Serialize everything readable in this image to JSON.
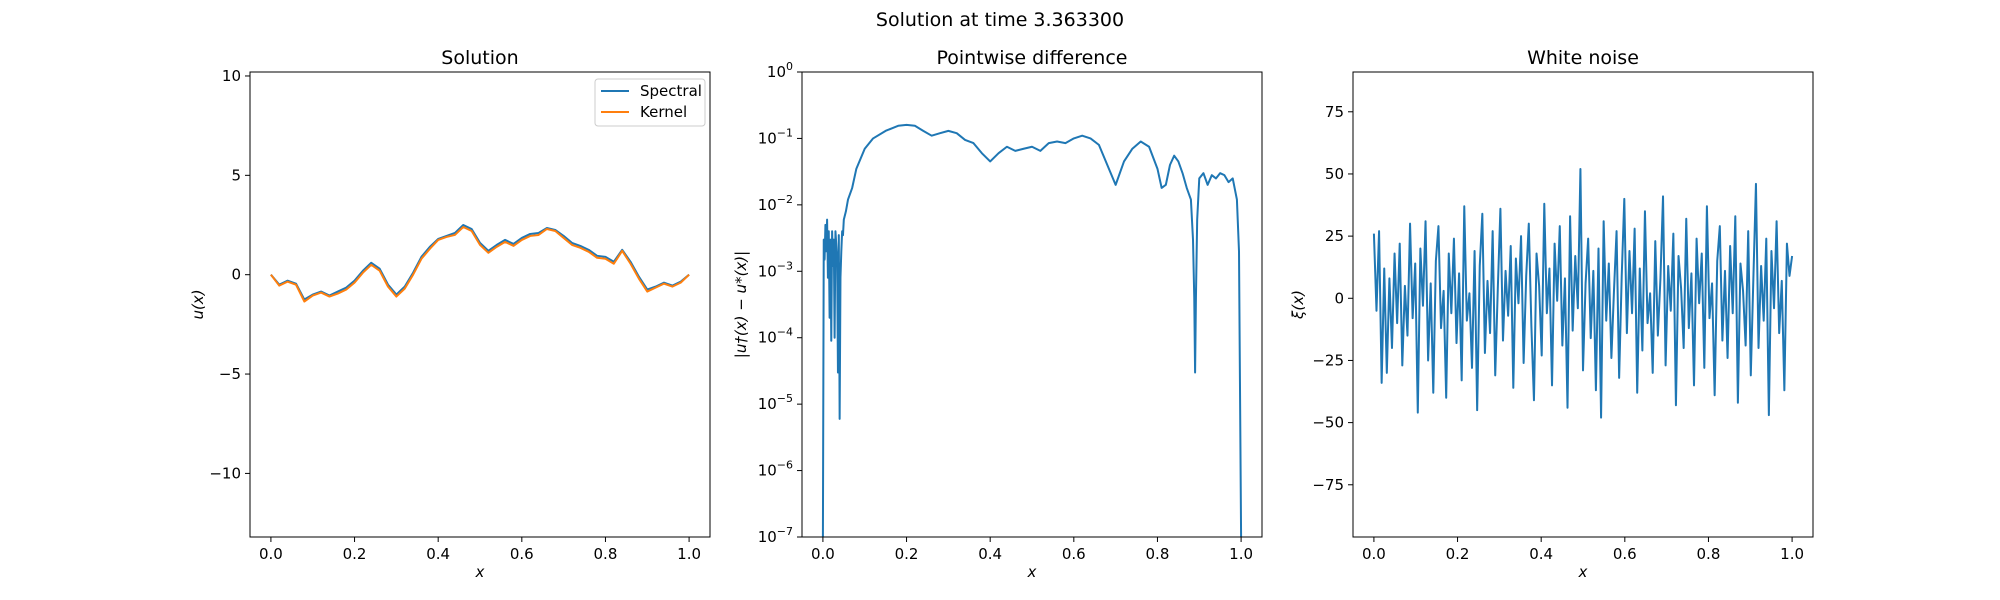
{
  "figure": {
    "suptitle": "Solution at time 3.363300"
  },
  "colors": {
    "series_1": "#1f77b4",
    "series_2": "#ff7f0e",
    "axes": "#000000",
    "background": "#ffffff"
  },
  "chart_data": [
    {
      "type": "line",
      "title": "Solution",
      "xlabel": "x",
      "ylabel": "u(x)",
      "xlim": [
        -0.05,
        1.05
      ],
      "ylim": [
        -13.2,
        10.2
      ],
      "xticks": [
        0.0,
        0.2,
        0.4,
        0.6,
        0.8,
        1.0
      ],
      "xtick_labels": [
        "0.0",
        "0.2",
        "0.4",
        "0.6",
        "0.8",
        "1.0"
      ],
      "yticks": [
        -10,
        -5,
        0,
        5,
        10
      ],
      "ytick_labels": [
        "−10",
        "−5",
        "0",
        "5",
        "10"
      ],
      "grid": false,
      "legend": "top-right",
      "x": [
        0.0,
        0.02,
        0.04,
        0.06,
        0.08,
        0.1,
        0.12,
        0.14,
        0.16,
        0.18,
        0.2,
        0.22,
        0.24,
        0.26,
        0.28,
        0.3,
        0.32,
        0.34,
        0.36,
        0.38,
        0.4,
        0.42,
        0.44,
        0.46,
        0.48,
        0.5,
        0.52,
        0.54,
        0.56,
        0.58,
        0.6,
        0.62,
        0.64,
        0.66,
        0.68,
        0.7,
        0.72,
        0.74,
        0.76,
        0.78,
        0.8,
        0.82,
        0.84,
        0.86,
        0.88,
        0.9,
        0.92,
        0.94,
        0.96,
        0.98,
        1.0
      ],
      "series": [
        {
          "name": "Spectral",
          "values": [
            0.0,
            -0.5,
            -0.3,
            -0.45,
            -1.25,
            -1.0,
            -0.85,
            -1.05,
            -0.85,
            -0.65,
            -0.3,
            0.2,
            0.6,
            0.3,
            -0.5,
            -1.0,
            -0.6,
            0.1,
            0.9,
            1.4,
            1.8,
            1.95,
            2.1,
            2.5,
            2.3,
            1.6,
            1.2,
            1.5,
            1.75,
            1.55,
            1.85,
            2.05,
            2.1,
            2.35,
            2.25,
            1.95,
            1.6,
            1.45,
            1.25,
            0.95,
            0.9,
            0.65,
            1.25,
            0.65,
            -0.1,
            -0.75,
            -0.6,
            -0.4,
            -0.55,
            -0.35,
            0.0
          ]
        },
        {
          "name": "Kernel",
          "values": [
            0.0,
            -0.55,
            -0.35,
            -0.5,
            -1.35,
            -1.05,
            -0.9,
            -1.1,
            -0.95,
            -0.75,
            -0.4,
            0.1,
            0.5,
            0.2,
            -0.6,
            -1.1,
            -0.7,
            0.0,
            0.8,
            1.3,
            1.75,
            1.9,
            2.0,
            2.4,
            2.2,
            1.5,
            1.1,
            1.4,
            1.65,
            1.45,
            1.75,
            1.95,
            2.0,
            2.3,
            2.2,
            1.85,
            1.5,
            1.35,
            1.15,
            0.85,
            0.8,
            0.55,
            1.2,
            0.55,
            -0.2,
            -0.85,
            -0.65,
            -0.45,
            -0.6,
            -0.4,
            0.0
          ]
        }
      ]
    },
    {
      "type": "line",
      "title": "Pointwise difference",
      "xlabel": "x",
      "ylabel": "|u†(x) − u*(x)|",
      "yscale": "log",
      "xlim": [
        -0.05,
        1.05
      ],
      "ylim": [
        1e-07,
        1
      ],
      "xticks": [
        0.0,
        0.2,
        0.4,
        0.6,
        0.8,
        1.0
      ],
      "xtick_labels": [
        "0.0",
        "0.2",
        "0.4",
        "0.6",
        "0.8",
        "1.0"
      ],
      "yticks": [
        1e-07,
        1e-06,
        1e-05,
        0.0001,
        0.001,
        0.01,
        0.1,
        1
      ],
      "ytick_mantissa": [
        "10",
        "10",
        "10",
        "10",
        "10",
        "10",
        "10",
        "10"
      ],
      "ytick_exponents": [
        "−7",
        "−6",
        "−5",
        "−4",
        "−3",
        "−2",
        "−1",
        "0"
      ],
      "grid": false,
      "x": [
        0.0,
        0.002,
        0.004,
        0.006,
        0.008,
        0.01,
        0.012,
        0.014,
        0.016,
        0.018,
        0.02,
        0.022,
        0.024,
        0.026,
        0.028,
        0.03,
        0.032,
        0.034,
        0.036,
        0.038,
        0.04,
        0.042,
        0.044,
        0.046,
        0.048,
        0.05,
        0.055,
        0.06,
        0.07,
        0.08,
        0.1,
        0.12,
        0.15,
        0.18,
        0.2,
        0.22,
        0.24,
        0.26,
        0.28,
        0.3,
        0.32,
        0.34,
        0.36,
        0.38,
        0.4,
        0.42,
        0.44,
        0.46,
        0.48,
        0.5,
        0.52,
        0.54,
        0.56,
        0.58,
        0.6,
        0.62,
        0.64,
        0.66,
        0.68,
        0.7,
        0.72,
        0.74,
        0.76,
        0.78,
        0.8,
        0.81,
        0.82,
        0.83,
        0.84,
        0.85,
        0.86,
        0.87,
        0.88,
        0.885,
        0.888,
        0.89,
        0.892,
        0.895,
        0.9,
        0.91,
        0.92,
        0.93,
        0.94,
        0.95,
        0.96,
        0.97,
        0.98,
        0.99,
        0.995,
        1.0
      ],
      "values": [
        1e-07,
        0.003,
        0.0015,
        0.005,
        0.002,
        0.006,
        0.0008,
        0.004,
        0.0002,
        0.003,
        9e-05,
        0.004,
        0.0012,
        0.003,
        0.0001,
        0.004,
        0.0025,
        0.0015,
        3e-05,
        0.0035,
        6e-06,
        0.0008,
        0.002,
        0.004,
        0.0035,
        0.006,
        0.008,
        0.012,
        0.018,
        0.035,
        0.07,
        0.1,
        0.13,
        0.155,
        0.16,
        0.155,
        0.13,
        0.11,
        0.12,
        0.13,
        0.12,
        0.095,
        0.085,
        0.06,
        0.045,
        0.06,
        0.075,
        0.065,
        0.07,
        0.075,
        0.065,
        0.085,
        0.09,
        0.085,
        0.1,
        0.11,
        0.1,
        0.08,
        0.04,
        0.02,
        0.045,
        0.07,
        0.09,
        0.075,
        0.035,
        0.018,
        0.02,
        0.04,
        0.055,
        0.045,
        0.03,
        0.018,
        0.012,
        0.003,
        0.0004,
        3e-05,
        0.0004,
        0.006,
        0.025,
        0.03,
        0.02,
        0.028,
        0.025,
        0.03,
        0.028,
        0.022,
        0.025,
        0.012,
        0.002,
        1e-07
      ]
    },
    {
      "type": "line",
      "title": "White noise",
      "xlabel": "x",
      "ylabel": "ξ(x)",
      "xlim": [
        -0.05,
        1.05
      ],
      "ylim": [
        -96,
        91
      ],
      "xticks": [
        0.0,
        0.2,
        0.4,
        0.6,
        0.8,
        1.0
      ],
      "xtick_labels": [
        "0.0",
        "0.2",
        "0.4",
        "0.6",
        "0.8",
        "1.0"
      ],
      "yticks": [
        -75,
        -50,
        -25,
        0,
        25,
        50,
        75
      ],
      "ytick_labels": [
        "−75",
        "−50",
        "−25",
        "0",
        "25",
        "50",
        "75"
      ],
      "grid": false,
      "x_start": 0.0,
      "x_end": 1.0,
      "values": [
        26,
        -5,
        27,
        -34,
        12,
        -30,
        8,
        -20,
        18,
        -10,
        22,
        -27,
        5,
        -15,
        30,
        -8,
        14,
        -46,
        20,
        -3,
        31,
        -25,
        6,
        -38,
        15,
        29,
        -12,
        3,
        -40,
        18,
        -6,
        24,
        -18,
        10,
        -33,
        37,
        -9,
        2,
        -28,
        19,
        -45,
        13,
        34,
        -22,
        7,
        -14,
        27,
        -31,
        4,
        36,
        -17,
        11,
        -7,
        21,
        -36,
        16,
        -2,
        25,
        -26,
        9,
        30,
        -11,
        -41,
        18,
        5,
        -23,
        38,
        -6,
        12,
        -35,
        22,
        -1,
        29,
        -19,
        8,
        -44,
        33,
        -13,
        17,
        -4,
        52,
        -29,
        6,
        24,
        -16,
        11,
        -37,
        20,
        -48,
        31,
        -9,
        14,
        -24,
        3,
        27,
        -32,
        9,
        40,
        -14,
        19,
        -6,
        28,
        -38,
        12,
        -21,
        35,
        -10,
        2,
        -30,
        23,
        -15,
        8,
        41,
        -27,
        13,
        -5,
        26,
        -43,
        17,
        4,
        -20,
        32,
        -12,
        10,
        -35,
        24,
        -2,
        18,
        -28,
        37,
        -8,
        6,
        -39,
        15,
        29,
        -17,
        11,
        -24,
        21,
        -6,
        33,
        -42,
        14,
        3,
        -19,
        27,
        -31,
        8,
        46,
        -20,
        13,
        -9,
        24,
        -47,
        19,
        -4,
        31,
        -14,
        7,
        -37,
        22,
        9,
        17
      ]
    }
  ]
}
